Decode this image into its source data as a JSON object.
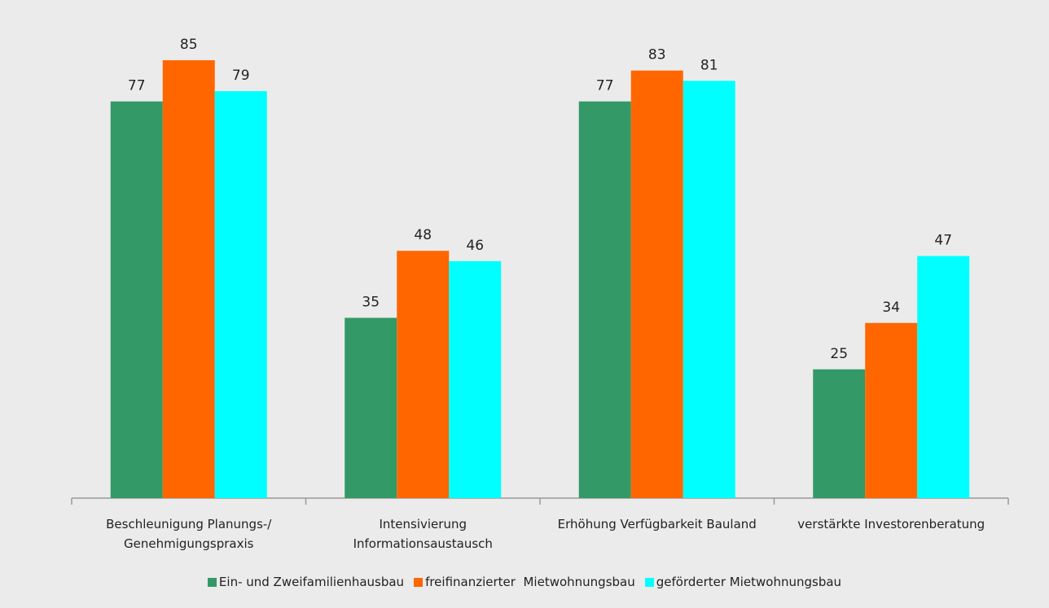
{
  "chart_data": {
    "type": "bar",
    "categories": [
      "Beschleunigung Planungs-/\nGenehmigungspraxis",
      "Intensivierung\nInformationsaustausch",
      "Erhöhung Verfügbarkeit Bauland",
      "verstärkte Investorenberatung"
    ],
    "series": [
      {
        "name": "Ein- und Zweifamilienhausbau",
        "color": "#339966",
        "values": [
          77,
          35,
          77,
          25
        ]
      },
      {
        "name": "freifinanzierter  Mietwohnungsbau",
        "color": "#ff6600",
        "values": [
          85,
          48,
          83,
          34
        ]
      },
      {
        "name": "geförderter Mietwohnungsbau",
        "color": "#00ffff",
        "values": [
          79,
          46,
          81,
          47
        ]
      }
    ]
  }
}
